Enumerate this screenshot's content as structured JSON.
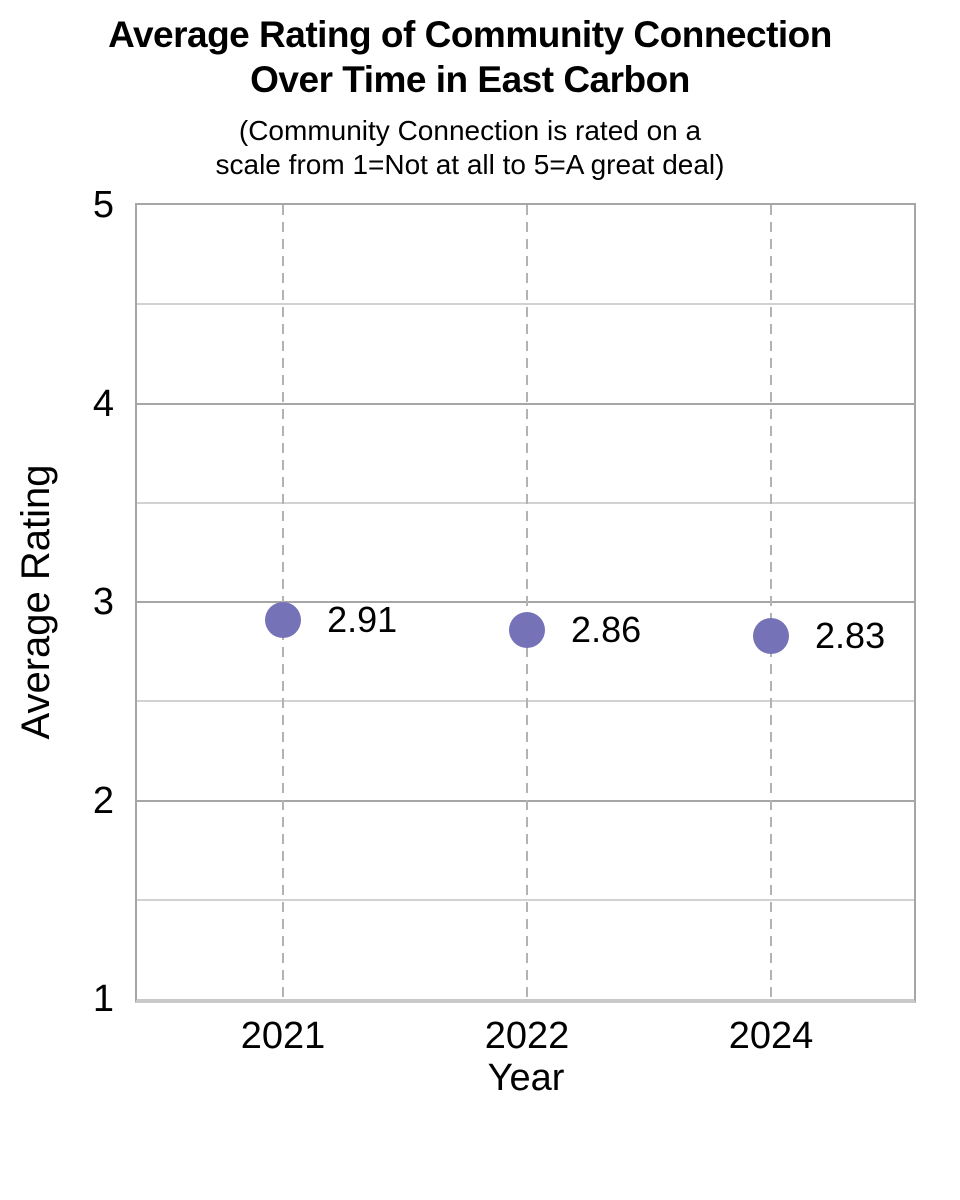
{
  "page": {
    "background": "#ffffff"
  },
  "chart_data": {
    "type": "scatter",
    "title": "Average Rating of Community Connection\nOver Time in East Carbon",
    "subtitle": "(Community Connection is rated on a\nscale from 1=Not at all to 5=A great deal)",
    "xlabel": "Year",
    "ylabel": "Average Rating",
    "categories": [
      "2021",
      "2022",
      "2024"
    ],
    "series": [
      {
        "name": "Average Rating",
        "values": [
          2.91,
          2.86,
          2.83
        ],
        "labels": [
          "2.91",
          "2.86",
          "2.83"
        ]
      }
    ],
    "ylim": [
      1,
      5
    ],
    "yticks": [
      5,
      4,
      3,
      2,
      1
    ],
    "minor_yticks": [
      4.5,
      3.5,
      2.5,
      1.5
    ],
    "grid": true,
    "legend": "none",
    "colors": {
      "marker": "#7672b8",
      "major_gridline": "#a6a6a6",
      "minor_gridline": "#d2d2d2",
      "category_dashline": "#b3b3b3",
      "plot_border": "#a6a6a6",
      "x_axis_line": "#c9c9c9",
      "text": "#000000"
    }
  }
}
